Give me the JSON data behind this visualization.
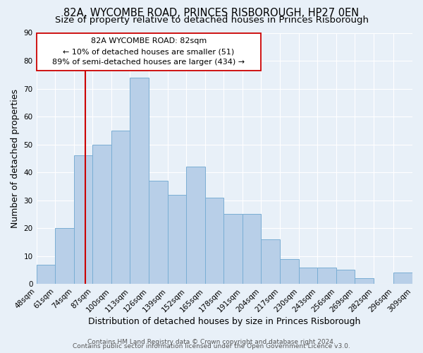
{
  "title": "82A, WYCOMBE ROAD, PRINCES RISBOROUGH, HP27 0EN",
  "subtitle": "Size of property relative to detached houses in Princes Risborough",
  "xlabel": "Distribution of detached houses by size in Princes Risborough",
  "ylabel": "Number of detached properties",
  "bin_labels": [
    "48sqm",
    "61sqm",
    "74sqm",
    "87sqm",
    "100sqm",
    "113sqm",
    "126sqm",
    "139sqm",
    "152sqm",
    "165sqm",
    "178sqm",
    "191sqm",
    "204sqm",
    "217sqm",
    "230sqm",
    "243sqm",
    "256sqm",
    "269sqm",
    "282sqm",
    "296sqm",
    "309sqm"
  ],
  "bin_edges": [
    48,
    61,
    74,
    87,
    100,
    113,
    126,
    139,
    152,
    165,
    178,
    191,
    204,
    217,
    230,
    243,
    256,
    269,
    282,
    296,
    309
  ],
  "counts": [
    7,
    20,
    46,
    50,
    55,
    74,
    37,
    32,
    42,
    31,
    25,
    25,
    16,
    9,
    6,
    6,
    5,
    2,
    0,
    4
  ],
  "bar_color": "#b8cfe8",
  "bar_edgecolor": "#7aaed4",
  "vline_x": 82,
  "vline_color": "#cc0000",
  "annotation_line1": "82A WYCOMBE ROAD: 82sqm",
  "annotation_line2": "← 10% of detached houses are smaller (51)",
  "annotation_line3": "89% of semi-detached houses are larger (434) →",
  "ylim": [
    0,
    90
  ],
  "yticks": [
    0,
    10,
    20,
    30,
    40,
    50,
    60,
    70,
    80,
    90
  ],
  "footer1": "Contains HM Land Registry data © Crown copyright and database right 2024.",
  "footer2": "Contains public sector information licensed under the Open Government Licence v3.0.",
  "bg_color": "#e8f0f8",
  "title_fontsize": 10.5,
  "subtitle_fontsize": 9.5,
  "axis_label_fontsize": 9,
  "tick_fontsize": 7.5,
  "annotation_fontsize": 8,
  "footer_fontsize": 6.5
}
